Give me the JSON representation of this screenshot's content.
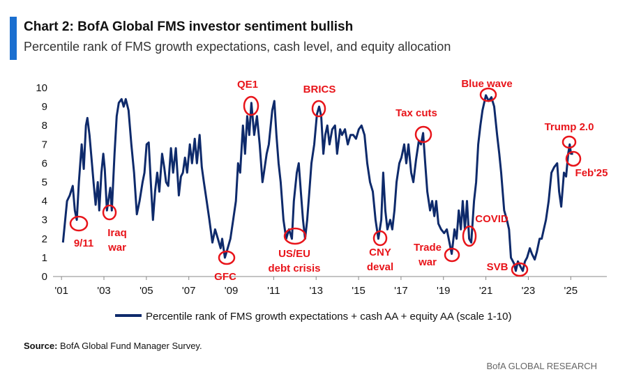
{
  "chart_data": {
    "type": "line",
    "title": "Chart 2: BofA Global FMS investor sentiment bullish",
    "subtitle": "Percentile rank of FMS growth expectations, cash level, and equity allocation",
    "series": [
      {
        "name": "Percentile rank of FMS growth expectations + cash AA + equity AA (scale 1-10)",
        "color": "#0e2a6b",
        "x": [
          2001.07,
          2001.26,
          2001.39,
          2001.53,
          2001.63,
          2001.72,
          2001.82,
          2001.95,
          2002.05,
          2002.15,
          2002.22,
          2002.32,
          2002.41,
          2002.51,
          2002.61,
          2002.71,
          2002.78,
          2002.88,
          2002.97,
          2003.04,
          2003.14,
          2003.3,
          2003.37,
          2003.5,
          2003.6,
          2003.7,
          2003.83,
          2003.93,
          2004.03,
          2004.16,
          2004.29,
          2004.42,
          2004.55,
          2004.68,
          2004.82,
          2004.91,
          2005.01,
          2005.11,
          2005.21,
          2005.31,
          2005.41,
          2005.51,
          2005.61,
          2005.74,
          2005.84,
          2005.93,
          2006.03,
          2006.16,
          2006.26,
          2006.39,
          2006.53,
          2006.63,
          2006.72,
          2006.82,
          2006.92,
          2007.05,
          2007.15,
          2007.28,
          2007.38,
          2007.51,
          2007.61,
          2007.71,
          2007.84,
          2007.97,
          2008.11,
          2008.24,
          2008.37,
          2008.5,
          2008.57,
          2008.7,
          2008.83,
          2008.96,
          2009.09,
          2009.22,
          2009.32,
          2009.42,
          2009.55,
          2009.65,
          2009.75,
          2009.85,
          2009.95,
          2010.08,
          2010.21,
          2010.34,
          2010.47,
          2010.54,
          2010.67,
          2010.77,
          2010.93,
          2011.03,
          2011.13,
          2011.23,
          2011.33,
          2011.46,
          2011.59,
          2011.72,
          2011.86,
          2011.95,
          2012.09,
          2012.18,
          2012.28,
          2012.38,
          2012.48,
          2012.58,
          2012.68,
          2012.78,
          2012.91,
          2013.04,
          2013.14,
          2013.24,
          2013.34,
          2013.43,
          2013.53,
          2013.63,
          2013.76,
          2013.89,
          2013.99,
          2014.13,
          2014.22,
          2014.36,
          2014.49,
          2014.62,
          2014.75,
          2014.88,
          2015.01,
          2015.14,
          2015.28,
          2015.41,
          2015.54,
          2015.67,
          2015.8,
          2015.93,
          2016.07,
          2016.16,
          2016.26,
          2016.36,
          2016.49,
          2016.59,
          2016.69,
          2016.79,
          2016.92,
          2017.02,
          2017.15,
          2017.25,
          2017.35,
          2017.48,
          2017.58,
          2017.71,
          2017.84,
          2017.94,
          2018.04,
          2018.14,
          2018.24,
          2018.37,
          2018.47,
          2018.57,
          2018.66,
          2018.76,
          2018.89,
          2019.03,
          2019.16,
          2019.39,
          2019.52,
          2019.62,
          2019.72,
          2019.82,
          2019.91,
          2020.01,
          2020.11,
          2020.21,
          2020.31,
          2020.44,
          2020.54,
          2020.64,
          2020.74,
          2020.84,
          2021.0,
          2021.13,
          2021.26,
          2021.39,
          2021.53,
          2021.63,
          2021.72,
          2021.86,
          2021.99,
          2022.09,
          2022.18,
          2022.32,
          2022.41,
          2022.51,
          2022.64,
          2022.74,
          2022.84,
          2022.94,
          2023.07,
          2023.17,
          2023.3,
          2023.4,
          2023.53,
          2023.63,
          2023.73,
          2023.83,
          2023.96,
          2024.09,
          2024.22,
          2024.36,
          2024.45,
          2024.55,
          2024.68,
          2024.78,
          2024.88,
          2024.95,
          2025.01,
          2025.11
        ],
        "values": [
          1.8,
          4.0,
          4.3,
          4.8,
          3.5,
          3.0,
          5.0,
          7.0,
          5.7,
          8.0,
          8.4,
          7.5,
          6.3,
          5.0,
          3.8,
          5.0,
          3.5,
          5.5,
          6.5,
          5.7,
          3.5,
          4.7,
          3.5,
          6.5,
          8.5,
          9.2,
          9.4,
          9.0,
          9.4,
          8.8,
          7.0,
          5.5,
          3.3,
          4.0,
          5.0,
          5.5,
          7.0,
          7.1,
          5.0,
          3.0,
          4.5,
          5.5,
          4.5,
          6.5,
          5.8,
          5.0,
          4.8,
          6.8,
          5.5,
          6.8,
          4.3,
          5.3,
          5.5,
          6.3,
          5.5,
          7.0,
          6.0,
          7.3,
          6.0,
          7.5,
          5.8,
          5.0,
          4.0,
          3.0,
          1.8,
          2.5,
          2.0,
          1.5,
          2.0,
          1.0,
          1.5,
          2.0,
          3.0,
          4.0,
          6.0,
          5.5,
          8.0,
          6.5,
          8.5,
          7.5,
          9.2,
          7.5,
          8.5,
          7.0,
          5.0,
          5.5,
          6.5,
          7.0,
          8.8,
          9.3,
          7.5,
          6.0,
          5.0,
          3.0,
          2.0,
          2.5,
          2.0,
          4.0,
          5.5,
          6.0,
          4.5,
          3.0,
          2.0,
          3.0,
          4.5,
          6.0,
          7.0,
          8.6,
          9.0,
          8.5,
          6.5,
          7.5,
          8.0,
          7.0,
          7.8,
          8.0,
          6.5,
          7.8,
          7.5,
          7.8,
          7.0,
          7.5,
          7.5,
          7.3,
          7.8,
          8.0,
          7.5,
          6.0,
          5.0,
          4.5,
          3.0,
          2.0,
          3.0,
          5.5,
          3.5,
          2.5,
          3.0,
          2.5,
          3.5,
          5.0,
          6.0,
          6.3,
          7.0,
          6.0,
          7.0,
          5.5,
          5.0,
          6.2,
          7.2,
          7.0,
          7.6,
          6.0,
          4.5,
          3.5,
          4.0,
          3.2,
          4.0,
          2.8,
          2.5,
          2.3,
          2.5,
          1.2,
          2.5,
          2.0,
          3.5,
          2.5,
          4.0,
          2.5,
          4.0,
          2.0,
          1.8,
          4.0,
          5.0,
          7.0,
          8.0,
          8.8,
          9.6,
          9.3,
          9.5,
          9.0,
          7.5,
          6.5,
          5.5,
          3.5,
          3.0,
          2.5,
          1.0,
          0.7,
          0.3,
          0.8,
          0.5,
          0.3,
          0.8,
          1.0,
          1.5,
          1.2,
          0.9,
          1.3,
          2.0,
          2.0,
          2.5,
          3.0,
          4.0,
          5.5,
          5.8,
          6.0,
          4.5,
          3.7,
          5.5,
          5.3,
          6.5,
          7.0,
          6.5,
          6.5
        ]
      }
    ],
    "xlim": [
      2000.6,
      2026.7
    ],
    "xticks": [
      {
        "value": 2001,
        "label": "'01"
      },
      {
        "value": 2003,
        "label": "'03"
      },
      {
        "value": 2005,
        "label": "'05"
      },
      {
        "value": 2007,
        "label": "'07"
      },
      {
        "value": 2009,
        "label": "'09"
      },
      {
        "value": 2011,
        "label": "'11"
      },
      {
        "value": 2013,
        "label": "'13"
      },
      {
        "value": 2015,
        "label": "'15"
      },
      {
        "value": 2017,
        "label": "'17"
      },
      {
        "value": 2019,
        "label": "'19"
      },
      {
        "value": 2021,
        "label": "'21"
      },
      {
        "value": 2023,
        "label": "'23"
      },
      {
        "value": 2025,
        "label": "'25"
      }
    ],
    "ylim": [
      0,
      10
    ],
    "yticks": [
      0,
      1,
      2,
      3,
      4,
      5,
      6,
      7,
      8,
      9,
      10
    ],
    "grid": false,
    "legend": "bottom",
    "annotations": [
      {
        "lines": [
          "9/11"
        ]
      },
      {
        "lines": [
          "Iraq",
          "war"
        ]
      },
      {
        "lines": [
          "GFC"
        ]
      },
      {
        "lines": [
          "QE1"
        ]
      },
      {
        "lines": [
          "US/EU",
          "debt crisis"
        ]
      },
      {
        "lines": [
          "BRICS"
        ]
      },
      {
        "lines": [
          "CNY",
          "deval"
        ]
      },
      {
        "lines": [
          "Tax cuts"
        ]
      },
      {
        "lines": [
          "Trade",
          "war"
        ]
      },
      {
        "lines": [
          "COVID"
        ]
      },
      {
        "lines": [
          "Blue wave"
        ]
      },
      {
        "lines": [
          "SVB"
        ]
      },
      {
        "lines": [
          "Trump 2.0"
        ]
      },
      {
        "lines": [
          "Feb'25"
        ]
      }
    ],
    "source_label": "Source:",
    "source": "BofA Global Fund Manager Survey.",
    "footer": "BofA GLOBAL RESEARCH"
  }
}
